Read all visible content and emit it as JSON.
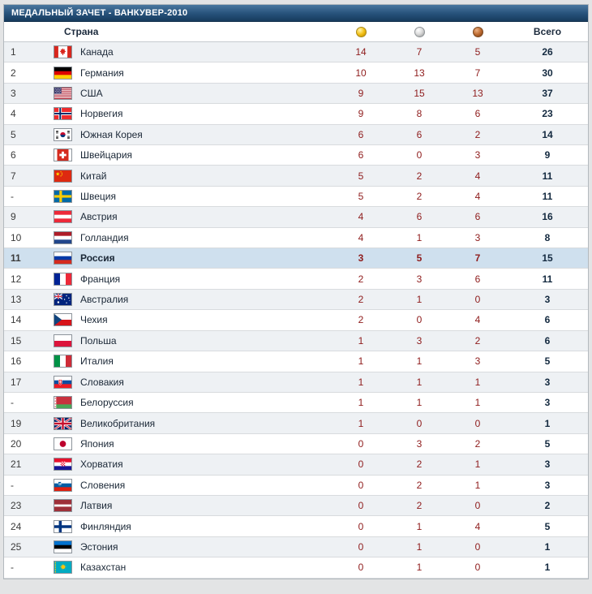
{
  "title": "МЕДАЛЬНЫЙ ЗАЧЕТ - ВАНКУВЕР-2010",
  "header": {
    "country": "Страна",
    "total": "Всего",
    "icons": [
      "gold-medal-icon",
      "silver-medal-icon",
      "bronze-medal-icon"
    ]
  },
  "colors": {
    "title_bar": "#1e4568",
    "alt_row": "#eef1f4",
    "highlight_row": "#cfe0ee",
    "row_line": "#d8dbde",
    "medal_count_text": "#8e1b1b",
    "total_text": "#13293f"
  },
  "chart_data": {
    "type": "table",
    "title": "МЕДАЛЬНЫЙ ЗАЧЕТ - ВАНКУВЕР-2010",
    "columns": [
      "Страна",
      "gold",
      "silver",
      "bronze",
      "Всего"
    ],
    "rows": [
      {
        "rank": "1",
        "flag": "ca",
        "country": "Канада",
        "gold": 14,
        "silver": 7,
        "bronze": 5,
        "total": 26
      },
      {
        "rank": "2",
        "flag": "de",
        "country": "Германия",
        "gold": 10,
        "silver": 13,
        "bronze": 7,
        "total": 30
      },
      {
        "rank": "3",
        "flag": "us",
        "country": "США",
        "gold": 9,
        "silver": 15,
        "bronze": 13,
        "total": 37
      },
      {
        "rank": "4",
        "flag": "no",
        "country": "Норвегия",
        "gold": 9,
        "silver": 8,
        "bronze": 6,
        "total": 23
      },
      {
        "rank": "5",
        "flag": "kr",
        "country": "Южная Корея",
        "gold": 6,
        "silver": 6,
        "bronze": 2,
        "total": 14
      },
      {
        "rank": "6",
        "flag": "ch",
        "country": "Швейцария",
        "gold": 6,
        "silver": 0,
        "bronze": 3,
        "total": 9
      },
      {
        "rank": "7",
        "flag": "cn",
        "country": "Китай",
        "gold": 5,
        "silver": 2,
        "bronze": 4,
        "total": 11
      },
      {
        "rank": "-",
        "flag": "se",
        "country": "Швеция",
        "gold": 5,
        "silver": 2,
        "bronze": 4,
        "total": 11
      },
      {
        "rank": "9",
        "flag": "at",
        "country": "Австрия",
        "gold": 4,
        "silver": 6,
        "bronze": 6,
        "total": 16
      },
      {
        "rank": "10",
        "flag": "nl",
        "country": "Голландия",
        "gold": 4,
        "silver": 1,
        "bronze": 3,
        "total": 8
      },
      {
        "rank": "11",
        "flag": "ru",
        "country": "Россия",
        "gold": 3,
        "silver": 5,
        "bronze": 7,
        "total": 15,
        "highlight": true
      },
      {
        "rank": "12",
        "flag": "fr",
        "country": "Франция",
        "gold": 2,
        "silver": 3,
        "bronze": 6,
        "total": 11
      },
      {
        "rank": "13",
        "flag": "au",
        "country": "Австралия",
        "gold": 2,
        "silver": 1,
        "bronze": 0,
        "total": 3
      },
      {
        "rank": "14",
        "flag": "cz",
        "country": "Чехия",
        "gold": 2,
        "silver": 0,
        "bronze": 4,
        "total": 6
      },
      {
        "rank": "15",
        "flag": "pl",
        "country": "Польша",
        "gold": 1,
        "silver": 3,
        "bronze": 2,
        "total": 6
      },
      {
        "rank": "16",
        "flag": "it",
        "country": "Италия",
        "gold": 1,
        "silver": 1,
        "bronze": 3,
        "total": 5
      },
      {
        "rank": "17",
        "flag": "sk",
        "country": "Словакия",
        "gold": 1,
        "silver": 1,
        "bronze": 1,
        "total": 3
      },
      {
        "rank": "-",
        "flag": "by",
        "country": "Белоруссия",
        "gold": 1,
        "silver": 1,
        "bronze": 1,
        "total": 3
      },
      {
        "rank": "19",
        "flag": "gb",
        "country": "Великобритания",
        "gold": 1,
        "silver": 0,
        "bronze": 0,
        "total": 1
      },
      {
        "rank": "20",
        "flag": "jp",
        "country": "Япония",
        "gold": 0,
        "silver": 3,
        "bronze": 2,
        "total": 5
      },
      {
        "rank": "21",
        "flag": "hr",
        "country": "Хорватия",
        "gold": 0,
        "silver": 2,
        "bronze": 1,
        "total": 3
      },
      {
        "rank": "-",
        "flag": "si",
        "country": "Словения",
        "gold": 0,
        "silver": 2,
        "bronze": 1,
        "total": 3
      },
      {
        "rank": "23",
        "flag": "lv",
        "country": "Латвия",
        "gold": 0,
        "silver": 2,
        "bronze": 0,
        "total": 2
      },
      {
        "rank": "24",
        "flag": "fi",
        "country": "Финляндия",
        "gold": 0,
        "silver": 1,
        "bronze": 4,
        "total": 5
      },
      {
        "rank": "25",
        "flag": "ee",
        "country": "Эстония",
        "gold": 0,
        "silver": 1,
        "bronze": 0,
        "total": 1
      },
      {
        "rank": "-",
        "flag": "kz",
        "country": "Казахстан",
        "gold": 0,
        "silver": 1,
        "bronze": 0,
        "total": 1
      }
    ]
  }
}
